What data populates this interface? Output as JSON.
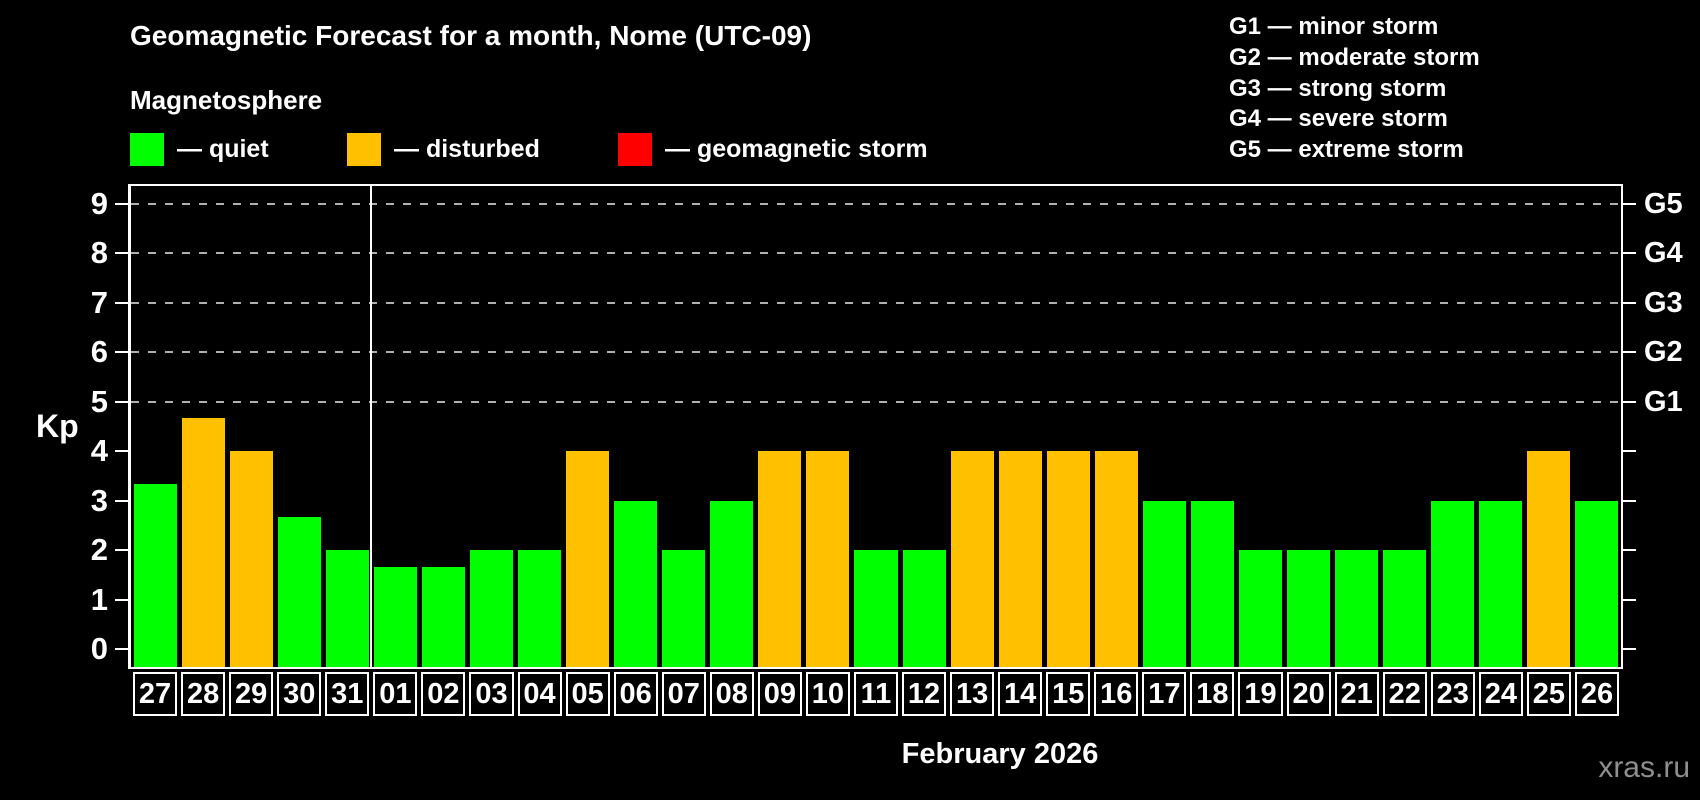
{
  "header": {
    "title": "Geomagnetic Forecast for a month, Nome (UTC-09)",
    "subtitle": "Magnetosphere"
  },
  "legend": {
    "quiet": {
      "label": "— quiet",
      "color": "#00ff00"
    },
    "disturbed": {
      "label": "— disturbed",
      "color": "#ffc000"
    },
    "storm": {
      "label": "— geomagnetic storm",
      "color": "#ff0000"
    }
  },
  "storm_scale_legend": [
    "G1 — minor storm",
    "G2 — moderate storm",
    "G3 — strong storm",
    "G4 — severe storm",
    "G5 — extreme storm"
  ],
  "footer": {
    "x_axis_title": "February 2026",
    "watermark": "xras.ru"
  },
  "chart_data": {
    "type": "bar",
    "title": "Geomagnetic Forecast for a month, Nome (UTC-09)",
    "subtitle": "Magnetosphere",
    "ylabel": "Kp",
    "xlabel": "February 2026",
    "ylim": [
      0,
      9
    ],
    "y_ticks": [
      0,
      1,
      2,
      3,
      4,
      5,
      6,
      7,
      8,
      9
    ],
    "gridlines_kp": [
      5,
      6,
      7,
      8,
      9
    ],
    "grid_style": "dashed gray, only at Kp 5-9",
    "legend_position": "top-left",
    "right_axis_labels": [
      {
        "label": "G1",
        "kp": 5
      },
      {
        "label": "G2",
        "kp": 6
      },
      {
        "label": "G3",
        "kp": 7
      },
      {
        "label": "G4",
        "kp": 8
      },
      {
        "label": "G5",
        "kp": 9
      }
    ],
    "categories": [
      "27",
      "28",
      "29",
      "30",
      "31",
      "01",
      "02",
      "03",
      "04",
      "05",
      "06",
      "07",
      "08",
      "09",
      "10",
      "11",
      "12",
      "13",
      "14",
      "15",
      "16",
      "17",
      "18",
      "19",
      "20",
      "21",
      "22",
      "23",
      "24",
      "25",
      "26"
    ],
    "values": [
      3.33,
      4.67,
      4,
      2.67,
      2,
      1.67,
      1.67,
      2,
      2,
      4,
      3,
      2,
      3,
      4,
      4,
      2,
      2,
      4,
      4,
      4,
      4,
      3,
      3,
      2,
      2,
      2,
      2,
      3,
      3,
      4,
      3
    ],
    "statuses": [
      "quiet",
      "disturbed",
      "disturbed",
      "quiet",
      "quiet",
      "quiet",
      "quiet",
      "quiet",
      "quiet",
      "disturbed",
      "quiet",
      "quiet",
      "quiet",
      "disturbed",
      "disturbed",
      "quiet",
      "quiet",
      "disturbed",
      "disturbed",
      "disturbed",
      "disturbed",
      "quiet",
      "quiet",
      "quiet",
      "quiet",
      "quiet",
      "quiet",
      "quiet",
      "quiet",
      "disturbed",
      "quiet"
    ],
    "colors": {
      "quiet": "#00ff00",
      "disturbed": "#ffc000",
      "storm": "#ff0000"
    },
    "month_separator_after_index": 4
  }
}
